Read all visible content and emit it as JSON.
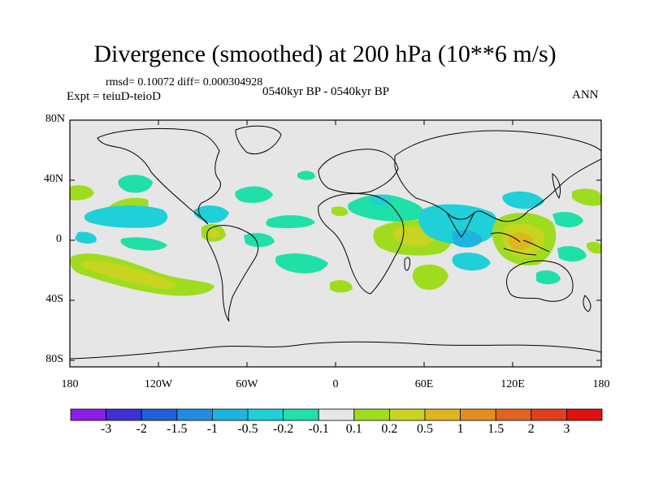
{
  "title": "Divergence (smoothed) at 200 hPa (10**6 m/s)",
  "stats": "rmsd= 0.10072 diff= 0.000304928",
  "experiment": "Expt = teiuD-teioD",
  "period": "0540kyr BP - 0540kyr BP",
  "season": "ANN",
  "y_ticks": [
    "80N",
    "40N",
    "0",
    "40S",
    "80S"
  ],
  "x_ticks": [
    "180",
    "120W",
    "60W",
    "0",
    "60E",
    "120E",
    "180"
  ],
  "colorbar": {
    "labels": [
      "-3",
      "-2",
      "-1.5",
      "-1",
      "-0.5",
      "-0.2",
      "-0.1",
      "0.1",
      "0.2",
      "0.5",
      "1",
      "1.5",
      "2",
      "3"
    ],
    "colors": [
      "#8a1fe8",
      "#3f2fd6",
      "#1f5fd8",
      "#1f8ce0",
      "#1fb4e0",
      "#1fd0d8",
      "#1fe0a8",
      "#e6e6e6",
      "#9fdc1f",
      "#c8d41f",
      "#e0b41f",
      "#e0901f",
      "#e0641f",
      "#e0401f",
      "#e01010"
    ]
  },
  "map": {
    "background": "#e6e6e6",
    "coastline_color": "#000000"
  }
}
